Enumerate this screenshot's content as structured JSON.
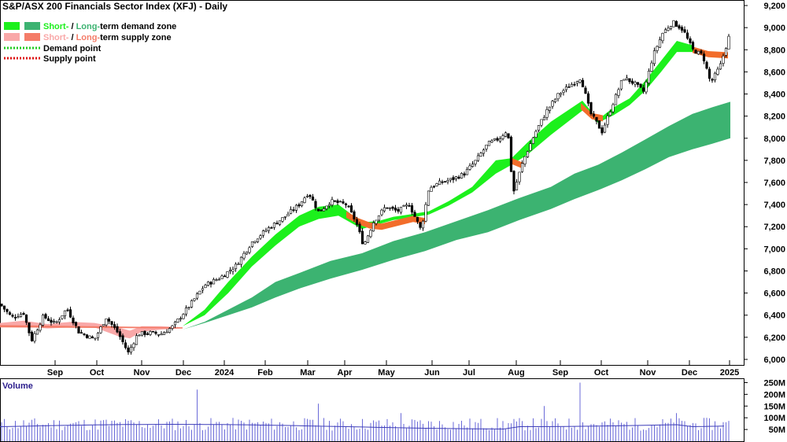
{
  "title": "S&P/ASX 200 Financials Sector Index (XFJ) - Daily",
  "legend": {
    "demand_zone": {
      "short": "Short-",
      "sep": " / ",
      "long": "Long-",
      "rest": "term demand zone"
    },
    "supply_zone": {
      "short": "Short-",
      "sep": " / ",
      "long": "Long-",
      "rest": "term supply zone"
    },
    "demand_point": "Demand point",
    "supply_point": "Supply point"
  },
  "volume_label": "Volume",
  "colors": {
    "short_demand": "#1cf01c",
    "long_demand": "#3cb371",
    "short_supply": "#f9a8a8",
    "long_supply": "#f47c68",
    "supply_band": "#f26d2b",
    "demand_point": "#22cc22",
    "supply_point": "#dd1111",
    "volume_bar": "#6a6ad8",
    "volume_avg": "#3c3cb8",
    "volume_label": "#2a1c8c"
  },
  "chart_data": [
    {
      "type": "candlestick",
      "title": "S&P/ASX 200 Financials Sector Index (XFJ) - Daily",
      "x_tick_labels": [
        "Sep",
        "Oct",
        "Nov",
        "Dec",
        "2024",
        "Feb",
        "Mar",
        "Apr",
        "May",
        "Jun",
        "Jul",
        "Aug",
        "Sep",
        "Oct",
        "Nov",
        "Dec",
        "2025"
      ],
      "y_tick_labels": [
        "6,000",
        "6,200",
        "6,400",
        "6,600",
        "6,800",
        "7,000",
        "7,200",
        "7,400",
        "7,600",
        "7,800",
        "8,000",
        "8,200",
        "8,400",
        "8,600",
        "8,800",
        "9,000",
        "9,200"
      ],
      "ylim": [
        5950,
        9250
      ],
      "grid": false,
      "legend_position": "top-left",
      "close_path": [
        [
          0,
          6500
        ],
        [
          15,
          6380
        ],
        [
          30,
          6420
        ],
        [
          40,
          6170
        ],
        [
          55,
          6390
        ],
        [
          70,
          6320
        ],
        [
          85,
          6460
        ],
        [
          100,
          6250
        ],
        [
          120,
          6180
        ],
        [
          135,
          6380
        ],
        [
          150,
          6240
        ],
        [
          163,
          6060
        ],
        [
          175,
          6230
        ],
        [
          190,
          6240
        ],
        [
          205,
          6230
        ],
        [
          220,
          6300
        ],
        [
          240,
          6480
        ],
        [
          260,
          6670
        ],
        [
          280,
          6740
        ],
        [
          300,
          6850
        ],
        [
          320,
          7060
        ],
        [
          340,
          7180
        ],
        [
          360,
          7280
        ],
        [
          380,
          7400
        ],
        [
          392,
          7510
        ],
        [
          405,
          7330
        ],
        [
          420,
          7430
        ],
        [
          440,
          7400
        ],
        [
          452,
          7250
        ],
        [
          462,
          7030
        ],
        [
          475,
          7250
        ],
        [
          490,
          7380
        ],
        [
          505,
          7340
        ],
        [
          520,
          7400
        ],
        [
          535,
          7170
        ],
        [
          545,
          7550
        ],
        [
          560,
          7600
        ],
        [
          575,
          7630
        ],
        [
          590,
          7680
        ],
        [
          605,
          7800
        ],
        [
          620,
          7950
        ],
        [
          635,
          8000
        ],
        [
          645,
          8080
        ],
        [
          652,
          7500
        ],
        [
          665,
          7800
        ],
        [
          680,
          8050
        ],
        [
          695,
          8250
        ],
        [
          710,
          8400
        ],
        [
          725,
          8480
        ],
        [
          738,
          8550
        ],
        [
          750,
          8230
        ],
        [
          765,
          8060
        ],
        [
          778,
          8300
        ],
        [
          792,
          8550
        ],
        [
          805,
          8500
        ],
        [
          818,
          8420
        ],
        [
          830,
          8750
        ],
        [
          842,
          8950
        ],
        [
          855,
          9050
        ],
        [
          868,
          8980
        ],
        [
          880,
          8800
        ],
        [
          893,
          8750
        ],
        [
          903,
          8500
        ],
        [
          915,
          8650
        ],
        [
          928,
          8960
        ]
      ],
      "short_demand_zone": [
        [
          232,
          6300,
          6300
        ],
        [
          260,
          6450,
          6400
        ],
        [
          290,
          6700,
          6600
        ],
        [
          320,
          6930,
          6840
        ],
        [
          350,
          7130,
          7030
        ],
        [
          380,
          7300,
          7200
        ],
        [
          405,
          7380,
          7270
        ],
        [
          430,
          7400,
          7300
        ],
        [
          460,
          7240,
          7180
        ],
        [
          480,
          7250,
          7220
        ],
        [
          500,
          7290,
          7260
        ],
        [
          520,
          7310,
          7280
        ],
        [
          545,
          7340,
          7310
        ],
        [
          570,
          7430,
          7390
        ],
        [
          600,
          7560,
          7510
        ],
        [
          630,
          7800,
          7680
        ],
        [
          650,
          7820,
          7760
        ],
        [
          670,
          7960,
          7850
        ],
        [
          700,
          8150,
          8030
        ],
        [
          740,
          8340,
          8250
        ],
        [
          760,
          8170,
          8140
        ],
        [
          780,
          8280,
          8210
        ],
        [
          800,
          8360,
          8300
        ],
        [
          820,
          8520,
          8430
        ],
        [
          840,
          8700,
          8600
        ],
        [
          860,
          8880,
          8780
        ],
        [
          880,
          8840,
          8780
        ]
      ],
      "long_demand_zone": [
        [
          232,
          6270,
          6270
        ],
        [
          260,
          6340,
          6330
        ],
        [
          290,
          6450,
          6400
        ],
        [
          320,
          6560,
          6470
        ],
        [
          350,
          6700,
          6560
        ],
        [
          380,
          6780,
          6640
        ],
        [
          420,
          6890,
          6730
        ],
        [
          460,
          6960,
          6810
        ],
        [
          500,
          7070,
          6900
        ],
        [
          540,
          7150,
          6980
        ],
        [
          580,
          7250,
          7080
        ],
        [
          620,
          7350,
          7150
        ],
        [
          660,
          7460,
          7260
        ],
        [
          700,
          7560,
          7360
        ],
        [
          730,
          7680,
          7450
        ],
        [
          760,
          7760,
          7530
        ],
        [
          790,
          7870,
          7620
        ],
        [
          820,
          7990,
          7720
        ],
        [
          850,
          8110,
          7830
        ],
        [
          880,
          8220,
          7900
        ],
        [
          905,
          8280,
          7950
        ],
        [
          928,
          8330,
          8000
        ]
      ],
      "short_supply_zone": [
        [
          0,
          6330,
          6290
        ],
        [
          30,
          6350,
          6300
        ],
        [
          60,
          6320,
          6280
        ],
        [
          90,
          6340,
          6290
        ],
        [
          120,
          6330,
          6290
        ],
        [
          150,
          6290,
          6210
        ],
        [
          165,
          6260,
          6190
        ],
        [
          180,
          6300,
          6250
        ],
        [
          205,
          6300,
          6270
        ],
        [
          232,
          6290,
          6280
        ]
      ],
      "long_supply_zone": [
        [
          0,
          6310,
          6290
        ],
        [
          232,
          6290,
          6280
        ]
      ],
      "supply_band": [
        [
          440,
          7320,
          7300
        ],
        [
          455,
          7260,
          7240
        ],
        [
          470,
          7220,
          7200
        ],
        [
          485,
          7210,
          7190
        ],
        [
          525,
          7280,
          7260
        ],
        [
          540,
          7260,
          7240
        ],
        [
          648,
          7810,
          7790
        ],
        [
          665,
          7760,
          7740
        ],
        [
          738,
          8300,
          8280
        ],
        [
          752,
          8210,
          8190
        ],
        [
          766,
          8190,
          8170
        ],
        [
          880,
          8810,
          8790
        ],
        [
          900,
          8770,
          8750
        ],
        [
          925,
          8760,
          8740
        ]
      ],
      "volume": {
        "y_tick_labels": [
          "50M",
          "100M",
          "150M",
          "200M",
          "250M"
        ],
        "ylim": [
          0,
          265
        ],
        "spikes": [
          [
            250,
            220
          ],
          [
            737,
            250
          ],
          [
            130,
            90
          ],
          [
            405,
            160
          ],
          [
            510,
            120
          ],
          [
            690,
            150
          ],
          [
            860,
            120
          ]
        ]
      }
    }
  ]
}
